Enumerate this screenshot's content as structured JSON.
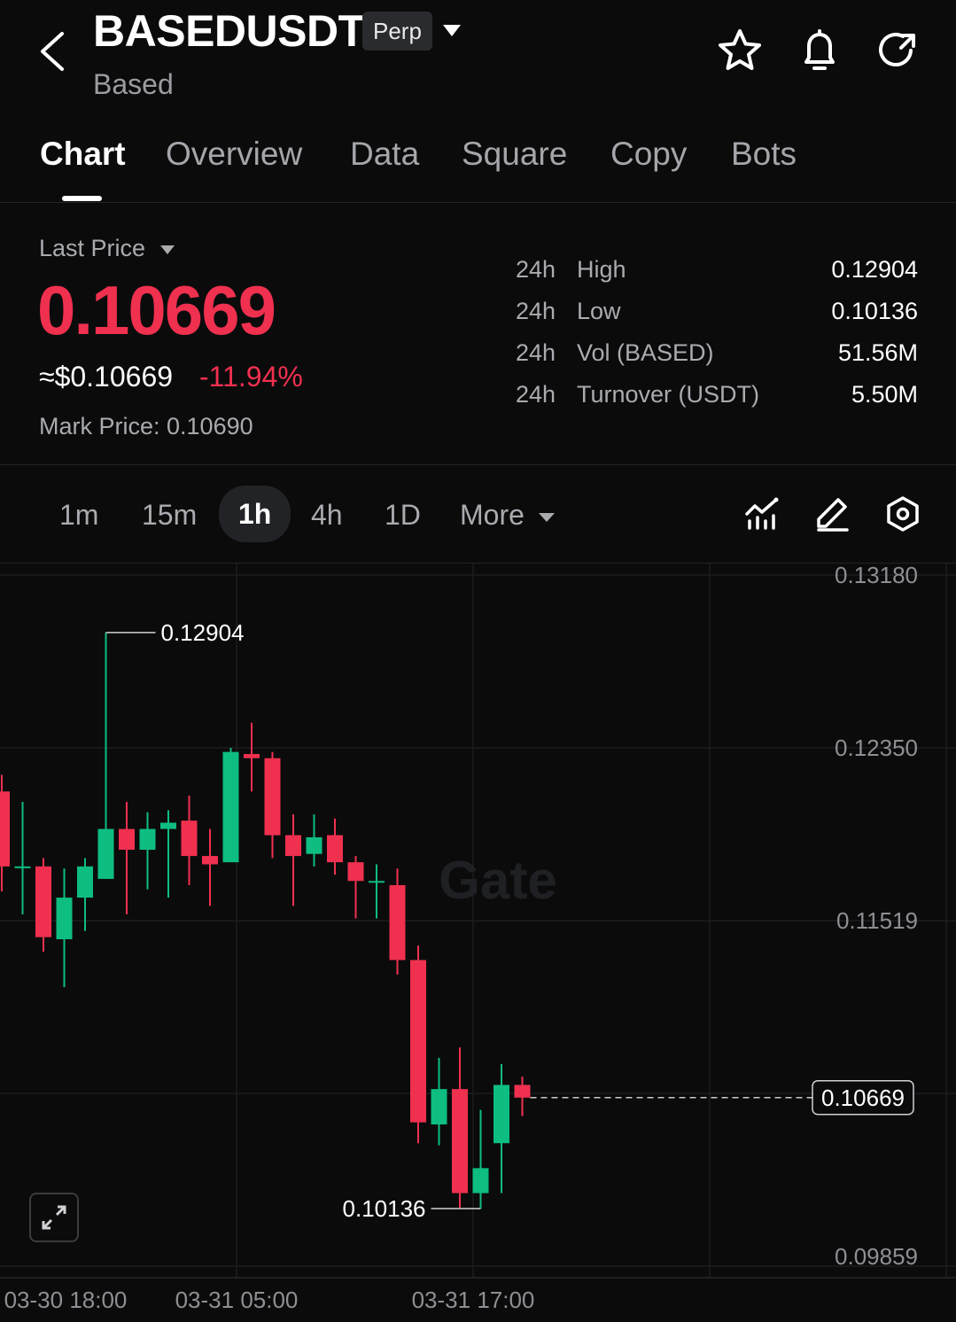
{
  "header": {
    "title": "BASEDUSDT",
    "badge": "Perp",
    "subtitle": "Based",
    "icons": [
      "back-arrow-icon",
      "chevron-down-icon",
      "star-icon",
      "bell-icon",
      "refresh-icon"
    ]
  },
  "tabs": [
    "Chart",
    "Overview",
    "Data",
    "Square",
    "Copy",
    "Bots"
  ],
  "price": {
    "label": "Last Price",
    "last": "0.10669",
    "approx": "≈$0.10669",
    "change": "-11.94%",
    "mark": "Mark Price: 0.10690",
    "color_down": "#f0304f",
    "color_up": "#0ebd80"
  },
  "stats": [
    {
      "period": "24h",
      "name": "High",
      "value": "0.12904"
    },
    {
      "period": "24h",
      "name": "Low",
      "value": "0.10136"
    },
    {
      "period": "24h",
      "name": "Vol (BASED)",
      "value": "51.56M"
    },
    {
      "period": "24h",
      "name": "Turnover (USDT)",
      "value": "5.50M"
    }
  ],
  "timeframes": {
    "items": [
      "1m",
      "15m",
      "1h",
      "4h",
      "1D",
      "More"
    ],
    "selected": "1h",
    "tool_icons": [
      "indicator-icon",
      "draw-pencil-icon",
      "chart-settings-icon"
    ]
  },
  "chart_data": {
    "type": "candlestick",
    "ylim": [
      0.09859,
      0.1318
    ],
    "y_ticks": [
      "0.13180",
      "0.12350",
      "0.11519",
      "0.09859"
    ],
    "x_ticks": [
      "03-30 18:00",
      "03-31 05:00",
      "03-31 17:00"
    ],
    "candles": [
      {
        "o": 0.1214,
        "c": 0.1178,
        "h": 0.1222,
        "l": 0.1166
      },
      {
        "o": 0.1178,
        "c": 0.1178,
        "h": 0.1209,
        "l": 0.1155
      },
      {
        "o": 0.1178,
        "c": 0.1144,
        "h": 0.1182,
        "l": 0.1137
      },
      {
        "o": 0.1143,
        "c": 0.1163,
        "h": 0.1177,
        "l": 0.112
      },
      {
        "o": 0.1163,
        "c": 0.1178,
        "h": 0.1182,
        "l": 0.1147
      },
      {
        "o": 0.1172,
        "c": 0.1196,
        "h": 0.12904,
        "l": 0.1172
      },
      {
        "o": 0.1196,
        "c": 0.1186,
        "h": 0.1209,
        "l": 0.1155
      },
      {
        "o": 0.1186,
        "c": 0.1196,
        "h": 0.1204,
        "l": 0.1167
      },
      {
        "o": 0.1196,
        "c": 0.1199,
        "h": 0.1205,
        "l": 0.1163
      },
      {
        "o": 0.12,
        "c": 0.1183,
        "h": 0.1212,
        "l": 0.1169
      },
      {
        "o": 0.1183,
        "c": 0.1179,
        "h": 0.1196,
        "l": 0.1159
      },
      {
        "o": 0.118,
        "c": 0.1233,
        "h": 0.1235,
        "l": 0.118
      },
      {
        "o": 0.1232,
        "c": 0.123,
        "h": 0.1247,
        "l": 0.1214
      },
      {
        "o": 0.123,
        "c": 0.1193,
        "h": 0.1233,
        "l": 0.1182
      },
      {
        "o": 0.1193,
        "c": 0.1183,
        "h": 0.1203,
        "l": 0.1159
      },
      {
        "o": 0.1184,
        "c": 0.1192,
        "h": 0.1203,
        "l": 0.1178
      },
      {
        "o": 0.1193,
        "c": 0.118,
        "h": 0.1201,
        "l": 0.1174
      },
      {
        "o": 0.118,
        "c": 0.1171,
        "h": 0.1183,
        "l": 0.1153
      },
      {
        "o": 0.1171,
        "c": 0.1171,
        "h": 0.1179,
        "l": 0.1153
      },
      {
        "o": 0.1169,
        "c": 0.1133,
        "h": 0.1177,
        "l": 0.1126
      },
      {
        "o": 0.1133,
        "c": 0.1055,
        "h": 0.114,
        "l": 0.1045
      },
      {
        "o": 0.1054,
        "c": 0.1071,
        "h": 0.1086,
        "l": 0.1044
      },
      {
        "o": 0.1071,
        "c": 0.1021,
        "h": 0.1091,
        "l": 0.1014
      },
      {
        "o": 0.1021,
        "c": 0.1033,
        "h": 0.1061,
        "l": 0.10136
      },
      {
        "o": 0.1045,
        "c": 0.1073,
        "h": 0.1083,
        "l": 0.1021
      },
      {
        "o": 0.1073,
        "c": 0.10669,
        "h": 0.1077,
        "l": 0.1058
      }
    ],
    "annotations": {
      "high": "0.12904",
      "low": "0.10136",
      "last": "0.10669"
    },
    "watermark": "Gate",
    "grid": true,
    "colors": {
      "up": "#0ebd80",
      "down": "#f0304f",
      "grid": "#1c1d20"
    }
  },
  "chart_controls": {
    "fullscreen_icon": "expand-icon"
  }
}
